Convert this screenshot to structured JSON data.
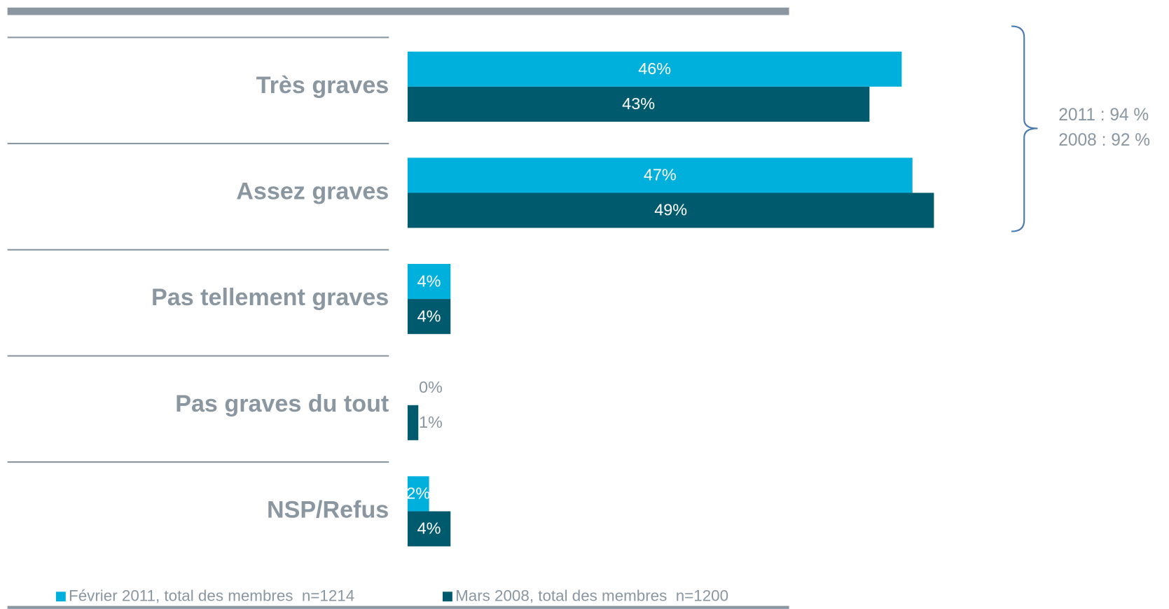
{
  "chart_data": {
    "type": "bar",
    "orientation": "horizontal",
    "categories": [
      "Très graves",
      "Assez graves",
      "Pas tellement graves",
      "Pas graves du tout",
      "NSP/Refus"
    ],
    "series": [
      {
        "name": "Février 2011, total des membres  n=1214",
        "color": "#00b0dc",
        "values": [
          46,
          47,
          4,
          0,
          2
        ],
        "value_labels": [
          "46%",
          "47%",
          "4%",
          "0%",
          "2%"
        ]
      },
      {
        "name": "Mars 2008, total des membres  n=1200",
        "color": "#005a6e",
        "values": [
          43,
          49,
          4,
          1,
          4
        ],
        "value_labels": [
          "43%",
          "49%",
          "4%",
          "1%",
          "4%"
        ]
      }
    ],
    "annotations": [
      "2011 : 94 %",
      "2008 : 92 %"
    ]
  }
}
